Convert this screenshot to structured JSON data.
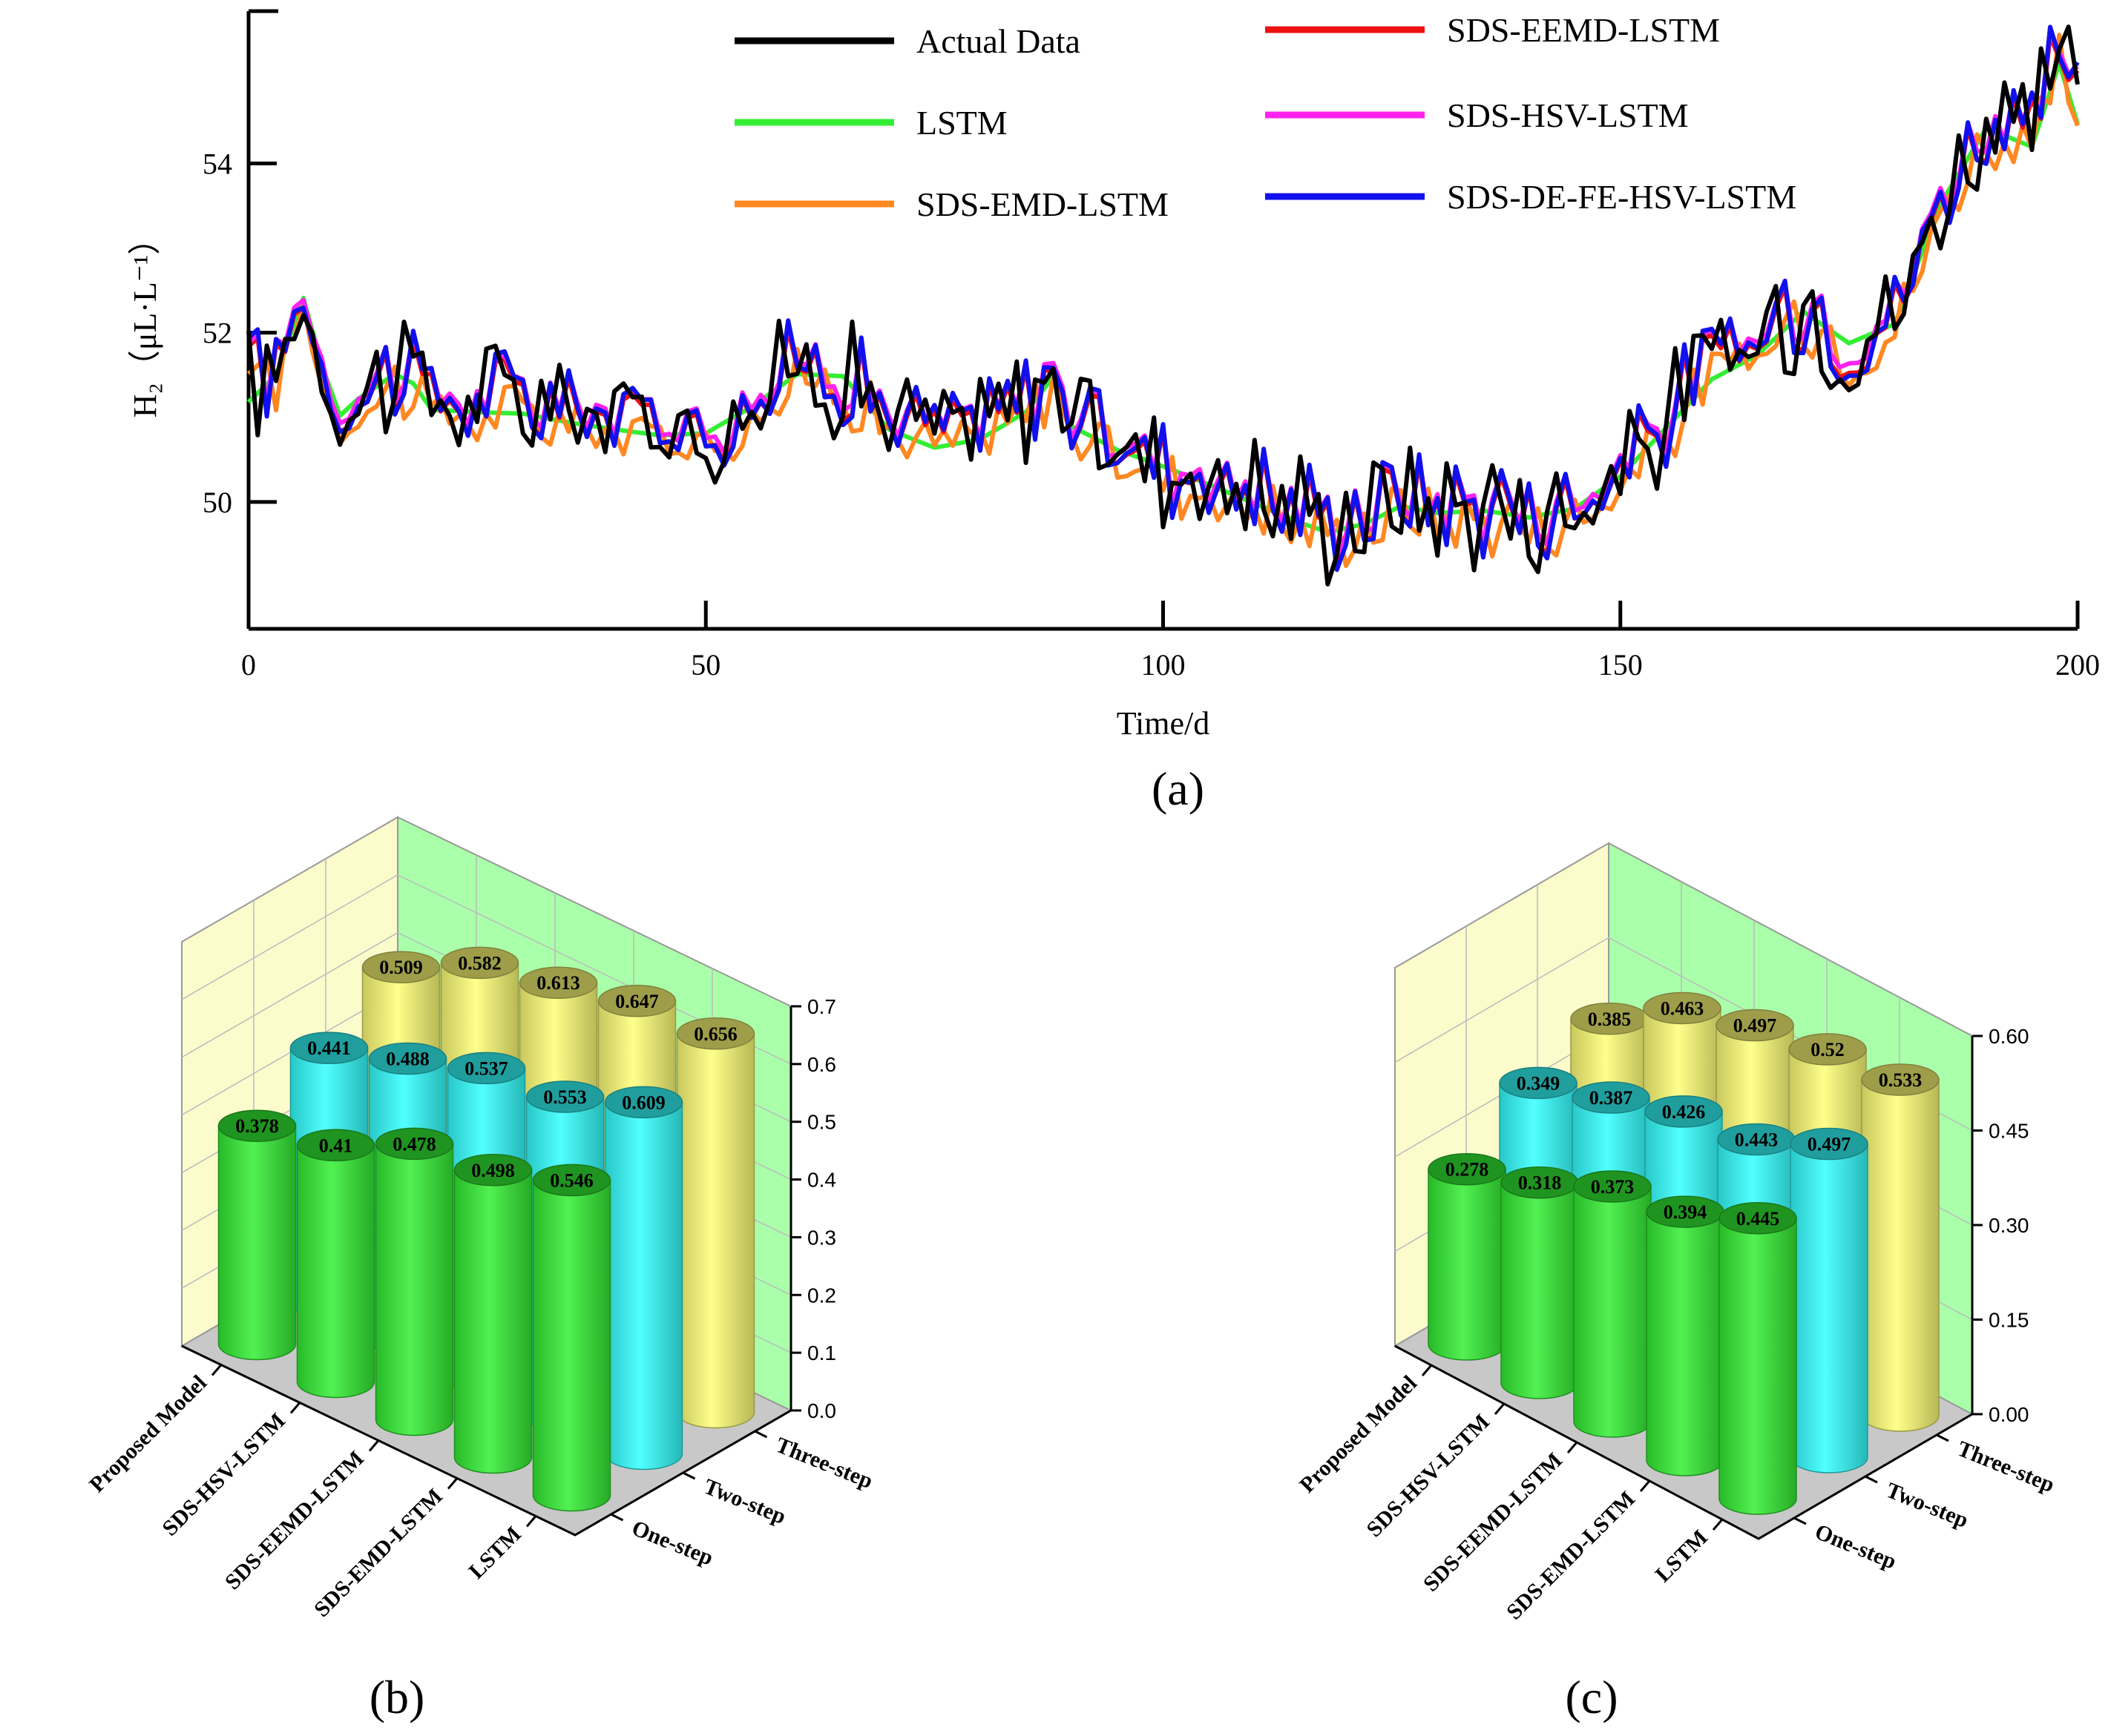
{
  "chart_data": [
    {
      "panel": "(a)",
      "type": "line",
      "xlabel": "Time/d",
      "ylabel": "H₂（μL·L⁻¹）",
      "xlim": [
        0,
        200
      ],
      "ylim": [
        48.5,
        55.8
      ],
      "xticks": [
        "0",
        "50",
        "100",
        "150",
        "200"
      ],
      "yticks": [
        "50",
        "52",
        "54"
      ],
      "legend_position": "top",
      "series": [
        {
          "name": "Actual Data",
          "color": "#000000"
        },
        {
          "name": "LSTM",
          "color": "#33ee33"
        },
        {
          "name": "SDS-EMD-LSTM",
          "color": "#ff8822"
        },
        {
          "name": "SDS-EEMD-LSTM",
          "color": "#ee1111"
        },
        {
          "name": "SDS-HSV-LSTM",
          "color": "#ff22ee"
        },
        {
          "name": "SDS-DE-FE-HSV-LSTM",
          "color": "#1111ee"
        }
      ],
      "anchors": [
        [
          0,
          51.3
        ],
        [
          3,
          51.6
        ],
        [
          6,
          52.5
        ],
        [
          8,
          51.7
        ],
        [
          10,
          51.1
        ],
        [
          12,
          51.3
        ],
        [
          16,
          51.6
        ],
        [
          18,
          51.5
        ],
        [
          20,
          51.2
        ],
        [
          25,
          51.2
        ],
        [
          30,
          51.2
        ],
        [
          35,
          51.1
        ],
        [
          40,
          51.0
        ],
        [
          45,
          50.9
        ],
        [
          50,
          50.9
        ],
        [
          55,
          51.2
        ],
        [
          60,
          51.6
        ],
        [
          65,
          51.6
        ],
        [
          70,
          51.0
        ],
        [
          75,
          50.8
        ],
        [
          80,
          50.9
        ],
        [
          85,
          51.2
        ],
        [
          88,
          51.6
        ],
        [
          90,
          51.0
        ],
        [
          95,
          50.7
        ],
        [
          100,
          50.5
        ],
        [
          105,
          50.3
        ],
        [
          110,
          50.1
        ],
        [
          115,
          49.9
        ],
        [
          118,
          49.8
        ],
        [
          122,
          49.9
        ],
        [
          126,
          50.1
        ],
        [
          130,
          50.0
        ],
        [
          135,
          50.0
        ],
        [
          140,
          49.9
        ],
        [
          145,
          50.0
        ],
        [
          150,
          50.4
        ],
        [
          155,
          51.0
        ],
        [
          160,
          51.6
        ],
        [
          165,
          51.9
        ],
        [
          170,
          52.4
        ],
        [
          175,
          52.0
        ],
        [
          180,
          52.2
        ],
        [
          185,
          53.6
        ],
        [
          190,
          54.5
        ],
        [
          195,
          54.3
        ],
        [
          198,
          55.3
        ],
        [
          200,
          54.6
        ]
      ]
    },
    {
      "panel": "(b)",
      "type": "bar",
      "categories": [
        "Proposed Model",
        "SDS-HSV-LSTM",
        "SDS-EEMD-LSTM",
        "SDS-EMD-LSTM",
        "LSTM"
      ],
      "steps": [
        "One-step",
        "Two-step",
        "Three-step"
      ],
      "zlim": [
        0,
        0.7
      ],
      "zticks": [
        "0.0",
        "0.1",
        "0.2",
        "0.3",
        "0.4",
        "0.5",
        "0.6",
        "0.7"
      ],
      "series": [
        {
          "name": "One-step",
          "color": "#33ee33",
          "values": [
            0.378,
            0.41,
            0.478,
            0.498,
            0.546
          ],
          "labels": [
            "0.378",
            "0.41",
            "0.478",
            "0.498",
            "0.546"
          ]
        },
        {
          "name": "Two-step",
          "color": "#33ffff",
          "values": [
            0.441,
            0.488,
            0.537,
            0.553,
            0.609
          ],
          "labels": [
            "0.441",
            "0.488",
            "0.537",
            "0.553",
            "0.609"
          ]
        },
        {
          "name": "Three-step",
          "color": "#ffff77",
          "values": [
            0.509,
            0.582,
            0.613,
            0.647,
            0.656
          ],
          "labels": [
            "0.509",
            "0.582",
            "0.613",
            "0.647",
            "0.656"
          ]
        }
      ]
    },
    {
      "panel": "(c)",
      "type": "bar",
      "categories": [
        "Proposed Model",
        "SDS-HSV-LSTM",
        "SDS-EEMD-LSTM",
        "SDS-EMD-LSTM",
        "LSTM"
      ],
      "steps": [
        "One-step",
        "Two-step",
        "Three-step"
      ],
      "zlim": [
        0,
        0.6
      ],
      "zticks": [
        "0.00",
        "0.15",
        "0.30",
        "0.45",
        "0.60"
      ],
      "series": [
        {
          "name": "One-step",
          "color": "#33ee33",
          "values": [
            0.278,
            0.318,
            0.373,
            0.394,
            0.445
          ],
          "labels": [
            "0.278",
            "0.318",
            "0.373",
            "0.394",
            "0.445"
          ]
        },
        {
          "name": "Two-step",
          "color": "#33ffff",
          "values": [
            0.349,
            0.387,
            0.426,
            0.443,
            0.497
          ],
          "labels": [
            "0.349",
            "0.387",
            "0.426",
            "0.443",
            "0.497"
          ]
        },
        {
          "name": "Three-step",
          "color": "#ffff77",
          "values": [
            0.385,
            0.463,
            0.497,
            0.52,
            0.533
          ],
          "labels": [
            "0.385",
            "0.463",
            "0.497",
            "0.52",
            "0.533"
          ]
        }
      ]
    }
  ]
}
